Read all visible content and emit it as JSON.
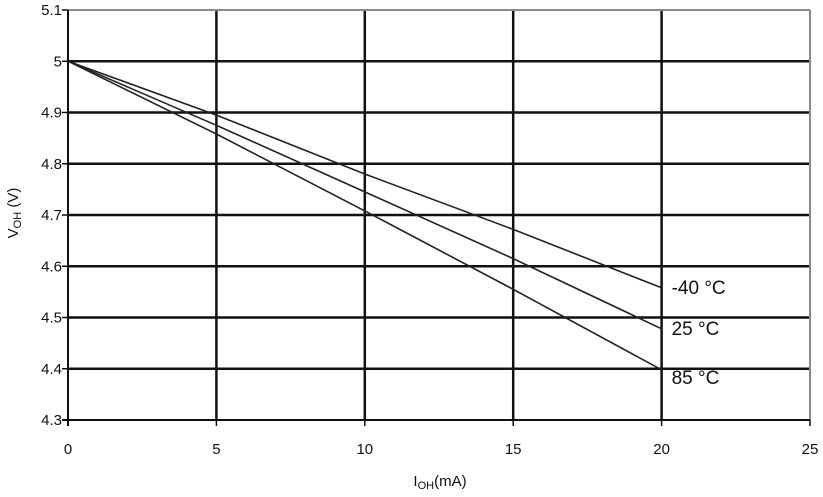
{
  "chart_data": {
    "type": "line",
    "title": "",
    "xlabel": {
      "main": "I",
      "sub": "OH",
      "rest": "(mA)"
    },
    "ylabel": {
      "main": "V",
      "sub": "OH",
      "rest": " (V)"
    },
    "xlim": [
      0,
      25
    ],
    "ylim": [
      4.3,
      5.1
    ],
    "xticks": [
      "0",
      "5",
      "10",
      "15",
      "20",
      "25"
    ],
    "yticks": [
      "4.3",
      "4.4",
      "4.5",
      "4.6",
      "4.7",
      "4.8",
      "4.9",
      "5",
      "5.1"
    ],
    "grid": true,
    "series": [
      {
        "name": "-40 °C",
        "x": [
          0,
          5,
          10,
          15,
          20
        ],
        "y": [
          5.0,
          4.895,
          4.78,
          4.672,
          4.558
        ]
      },
      {
        "name": "25 °C",
        "x": [
          0,
          5,
          10,
          15,
          20
        ],
        "y": [
          5.0,
          4.875,
          4.745,
          4.615,
          4.478
        ]
      },
      {
        "name": "85 °C",
        "x": [
          0,
          5,
          10,
          15,
          20
        ],
        "y": [
          5.0,
          4.858,
          4.708,
          4.555,
          4.398
        ]
      }
    ],
    "colors": {
      "line": "#222222",
      "grid": "#111111",
      "frame": "#8a8a8a"
    }
  }
}
